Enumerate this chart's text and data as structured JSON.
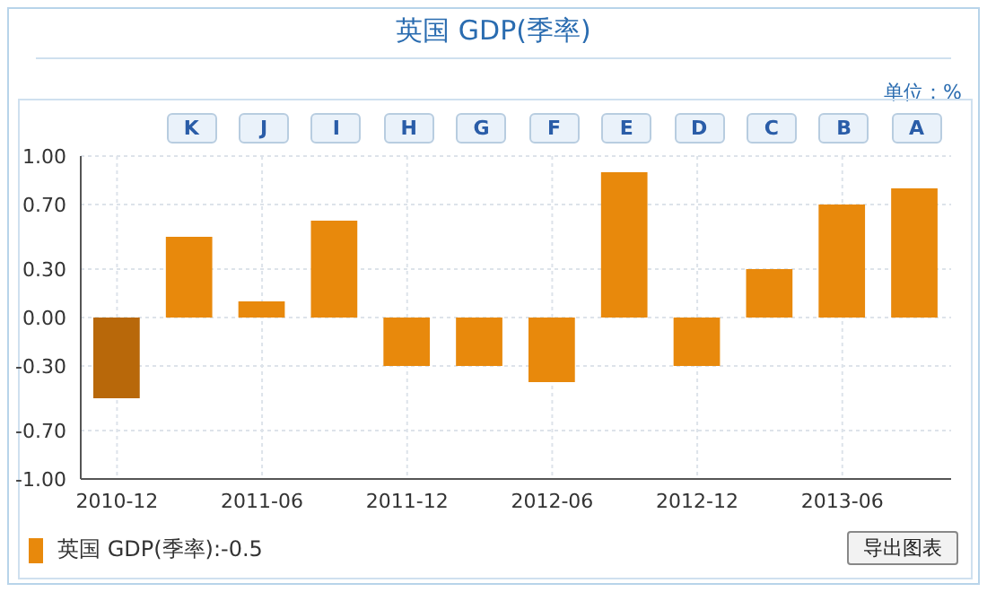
{
  "chart_data": {
    "type": "bar",
    "title": "英国 GDP(季率)",
    "categories": [
      "2010-12",
      null,
      "2011-06",
      null,
      "2011-12",
      null,
      "2012-06",
      null,
      "2012-12",
      null,
      "2013-06",
      null
    ],
    "series": [
      {
        "name": "英国 GDP(季率):-0.5",
        "color": "#e8890c",
        "colors": [
          "#b8680a",
          "#e8890c",
          "#e8890c",
          "#e8890c",
          "#e8890c",
          "#e8890c",
          "#e8890c",
          "#e8890c",
          "#e8890c",
          "#e8890c",
          "#e8890c",
          "#e8890c"
        ],
        "values": [
          -0.5,
          0.5,
          0.1,
          0.6,
          -0.3,
          -0.3,
          -0.4,
          0.9,
          -0.3,
          0.3,
          0.7,
          0.8
        ]
      }
    ],
    "ylim": [
      -1,
      1
    ],
    "yticks": [
      {
        "value": -1,
        "label": "-1.00"
      },
      {
        "value": -0.7,
        "label": "-0.70"
      },
      {
        "value": -0.3,
        "label": "-0.30"
      },
      {
        "value": 0,
        "label": "0.00"
      },
      {
        "value": 0.3,
        "label": "0.30"
      },
      {
        "value": 0.7,
        "label": "0.70"
      },
      {
        "value": 1,
        "label": "1.00"
      }
    ],
    "grid": true,
    "legend": "bottom left",
    "annotations": [
      "K",
      "J",
      "I",
      "H",
      "G",
      "F",
      "E",
      "D",
      "C",
      "B",
      "A",
      "单位：%",
      "导出图表"
    ]
  }
}
